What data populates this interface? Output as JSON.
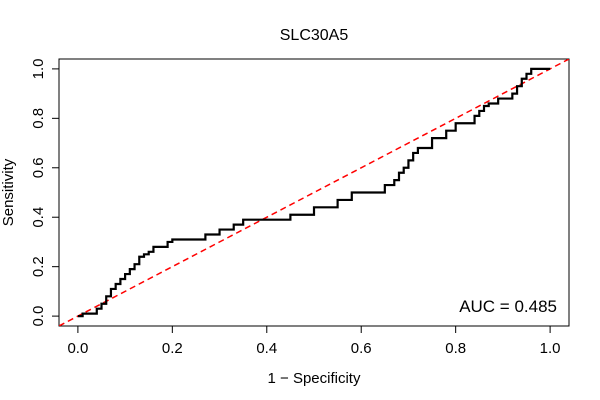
{
  "chart_data": {
    "type": "line",
    "title": "SLC30A5",
    "xlabel": "1 − Specificity",
    "ylabel": "Sensitivity",
    "xlim": [
      0,
      1
    ],
    "ylim": [
      0,
      1
    ],
    "xticks": [
      0.0,
      0.2,
      0.4,
      0.6,
      0.8,
      1.0
    ],
    "xtick_labels": [
      "0.0",
      "0.2",
      "0.4",
      "0.6",
      "0.8",
      "1.0"
    ],
    "yticks": [
      0.0,
      0.2,
      0.4,
      0.6,
      0.8,
      1.0
    ],
    "ytick_labels": [
      "0.0",
      "0.2",
      "0.4",
      "0.6",
      "0.8",
      "1.0"
    ],
    "grid": false,
    "annotation": "AUC = 0.485",
    "reference_line": {
      "x": [
        0,
        1
      ],
      "y": [
        0,
        1
      ],
      "color": "#ff0000",
      "style": "dashed"
    },
    "series": [
      {
        "color": "#000000",
        "x": [
          0.0,
          0.01,
          0.01,
          0.04,
          0.04,
          0.05,
          0.05,
          0.06,
          0.06,
          0.07,
          0.07,
          0.08,
          0.08,
          0.09,
          0.09,
          0.1,
          0.1,
          0.11,
          0.11,
          0.12,
          0.12,
          0.13,
          0.13,
          0.14,
          0.14,
          0.15,
          0.15,
          0.16,
          0.16,
          0.19,
          0.19,
          0.2,
          0.2,
          0.27,
          0.27,
          0.3,
          0.3,
          0.33,
          0.33,
          0.35,
          0.35,
          0.45,
          0.45,
          0.5,
          0.5,
          0.55,
          0.55,
          0.58,
          0.58,
          0.65,
          0.65,
          0.67,
          0.67,
          0.68,
          0.68,
          0.69,
          0.69,
          0.7,
          0.7,
          0.71,
          0.71,
          0.72,
          0.72,
          0.75,
          0.75,
          0.78,
          0.78,
          0.8,
          0.8,
          0.84,
          0.84,
          0.85,
          0.85,
          0.86,
          0.86,
          0.87,
          0.87,
          0.89,
          0.89,
          0.92,
          0.92,
          0.93,
          0.93,
          0.94,
          0.94,
          0.95,
          0.95,
          0.96,
          0.96,
          1.0
        ],
        "y": [
          0.0,
          0.0,
          0.01,
          0.01,
          0.03,
          0.03,
          0.05,
          0.05,
          0.08,
          0.08,
          0.11,
          0.11,
          0.13,
          0.13,
          0.15,
          0.15,
          0.17,
          0.17,
          0.19,
          0.19,
          0.21,
          0.21,
          0.24,
          0.24,
          0.25,
          0.25,
          0.26,
          0.26,
          0.28,
          0.28,
          0.3,
          0.3,
          0.31,
          0.31,
          0.33,
          0.33,
          0.35,
          0.35,
          0.37,
          0.37,
          0.39,
          0.39,
          0.41,
          0.41,
          0.44,
          0.44,
          0.47,
          0.47,
          0.5,
          0.5,
          0.53,
          0.53,
          0.55,
          0.55,
          0.58,
          0.58,
          0.6,
          0.6,
          0.63,
          0.63,
          0.66,
          0.66,
          0.68,
          0.68,
          0.72,
          0.72,
          0.75,
          0.75,
          0.78,
          0.78,
          0.81,
          0.81,
          0.83,
          0.83,
          0.85,
          0.85,
          0.86,
          0.86,
          0.88,
          0.88,
          0.9,
          0.9,
          0.93,
          0.93,
          0.96,
          0.96,
          0.98,
          0.98,
          1.0,
          1.0
        ]
      }
    ]
  }
}
